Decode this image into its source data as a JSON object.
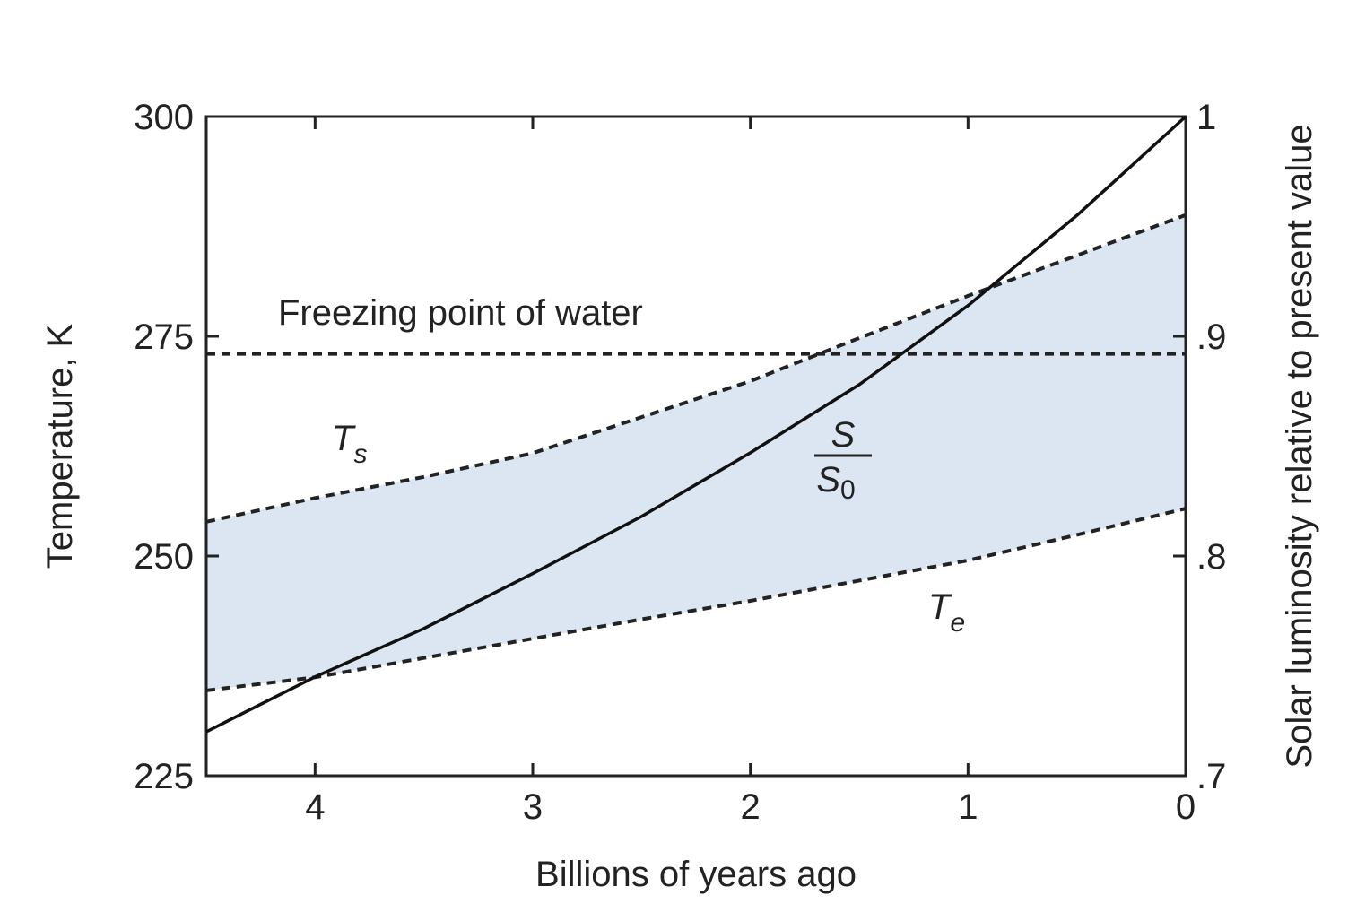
{
  "chart_data": {
    "type": "line",
    "x_label": "Billions of years ago",
    "y_label": "Temperature, K",
    "y2_label": "Solar luminosity relative to present value",
    "x": [
      4.5,
      4,
      3.5,
      3,
      2.5,
      2,
      1.5,
      1,
      0.5,
      0
    ],
    "xlim": [
      4.5,
      0
    ],
    "xticks": [
      4,
      3,
      2,
      1,
      0
    ],
    "ylim": [
      225,
      300
    ],
    "yticks": [
      225,
      250,
      275,
      300
    ],
    "y2lim": [
      0.7,
      1
    ],
    "y2ticks": [
      {
        "value": 0.7,
        "label": ".7"
      },
      {
        "value": 0.8,
        "label": ".8"
      },
      {
        "value": 0.9,
        "label": ".9"
      },
      {
        "value": 1,
        "label": "1"
      }
    ],
    "band_color": "#dce6f2",
    "series": [
      {
        "name": "Freezing point of water",
        "color": "#222222",
        "dashed": true,
        "values": [
          273,
          273,
          273,
          273,
          273,
          273,
          273,
          273,
          273,
          273
        ]
      },
      {
        "name": "Ts",
        "color": "#222222",
        "dashed": true,
        "values": [
          253.9,
          256.6,
          259,
          261.7,
          265.8,
          269.9,
          274.8,
          279.6,
          284.2,
          288.8
        ]
      },
      {
        "name": "Te",
        "color": "#222222",
        "dashed": true,
        "values": [
          234.7,
          236.2,
          238.4,
          240.6,
          242.8,
          244.9,
          247.2,
          249.5,
          252.4,
          255.4
        ]
      },
      {
        "name": "S/S0",
        "color": "#111111",
        "dashed": false,
        "axis": "y2",
        "values": [
          0.72,
          0.745,
          0.767,
          0.792,
          0.818,
          0.847,
          0.878,
          0.914,
          0.955,
          1
        ]
      }
    ]
  }
}
